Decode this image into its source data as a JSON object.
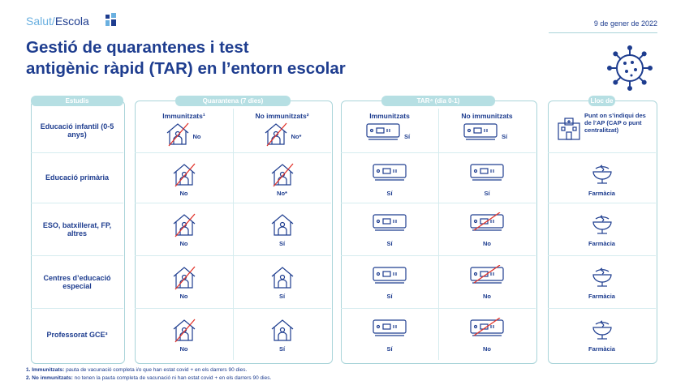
{
  "header": {
    "brand_light": "Salut/",
    "brand_bold": "Escola",
    "date": "9 de gener de 2022",
    "title_line1": "Gestió de quarantenes i test",
    "title_line2": "antigènic ràpid (TAR) en l’entorn escolar"
  },
  "table": {
    "group_headers": [
      "Estudis",
      "Quarantena (7 dies)",
      "TAR⁴ (dia 0-1)",
      "Lloc de realització TAR"
    ],
    "sub_headers": [
      "Immunitzats¹",
      "No immunitzats²",
      "Immunitzats",
      "No immunitzats"
    ],
    "rows": [
      [
        "Educació infantil (0-5 anys)",
        "No",
        "No*",
        "Sí",
        "Sí",
        "Punt on s’indiqui des de l’AP (CAP o punt centralitzat)"
      ],
      [
        "Educació primària",
        "No",
        "No*",
        "Sí",
        "Sí",
        "Farmàcia"
      ],
      [
        "ESO, batxillerat, FP, altres",
        "No",
        "Sí",
        "Sí",
        "No",
        "Farmàcia"
      ],
      [
        "Centres d’educació especial",
        "No",
        "Sí",
        "Sí",
        "No",
        "Farmàcia"
      ],
      [
        "Professorat GCE³",
        "No",
        "Sí",
        "Sí",
        "No",
        "Farmàcia"
      ]
    ]
  },
  "footnotes": [
    {
      "term": "1. Immunitzats:",
      "text": "pauta de vacunació completa i/o que han estat covid + en els darrers 90 dies."
    },
    {
      "term": "2. No immunitzats:",
      "text": "no tenen la pauta completa de vacunació ni han estat covid + en els darrers 90 dies."
    }
  ]
}
